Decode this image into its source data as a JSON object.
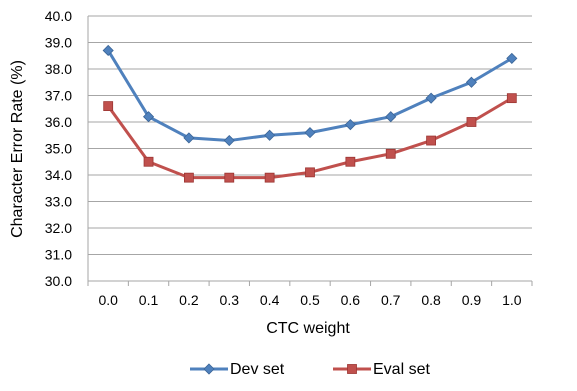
{
  "chart_data": {
    "type": "line",
    "title": "",
    "xlabel": "CTC weight",
    "ylabel": "Character Error Rate (%)",
    "ylim": [
      30.0,
      40.0
    ],
    "y_ticks": [
      "30.0",
      "31.0",
      "32.0",
      "33.0",
      "34.0",
      "35.0",
      "36.0",
      "37.0",
      "38.0",
      "39.0",
      "40.0"
    ],
    "categories": [
      "0.0",
      "0.1",
      "0.2",
      "0.3",
      "0.4",
      "0.5",
      "0.6",
      "0.7",
      "0.8",
      "0.9",
      "1.0"
    ],
    "grid": true,
    "legend_position": "bottom",
    "series": [
      {
        "name": "Dev set",
        "color": "#4f81bd",
        "marker": "diamond",
        "values": [
          38.7,
          36.2,
          35.4,
          35.3,
          35.5,
          35.6,
          35.9,
          36.2,
          36.9,
          37.5,
          38.4
        ]
      },
      {
        "name": "Eval set",
        "color": "#c0504d",
        "marker": "square",
        "values": [
          36.6,
          34.5,
          33.9,
          33.9,
          33.9,
          34.1,
          34.5,
          34.8,
          35.3,
          36.0,
          36.9
        ]
      }
    ]
  }
}
